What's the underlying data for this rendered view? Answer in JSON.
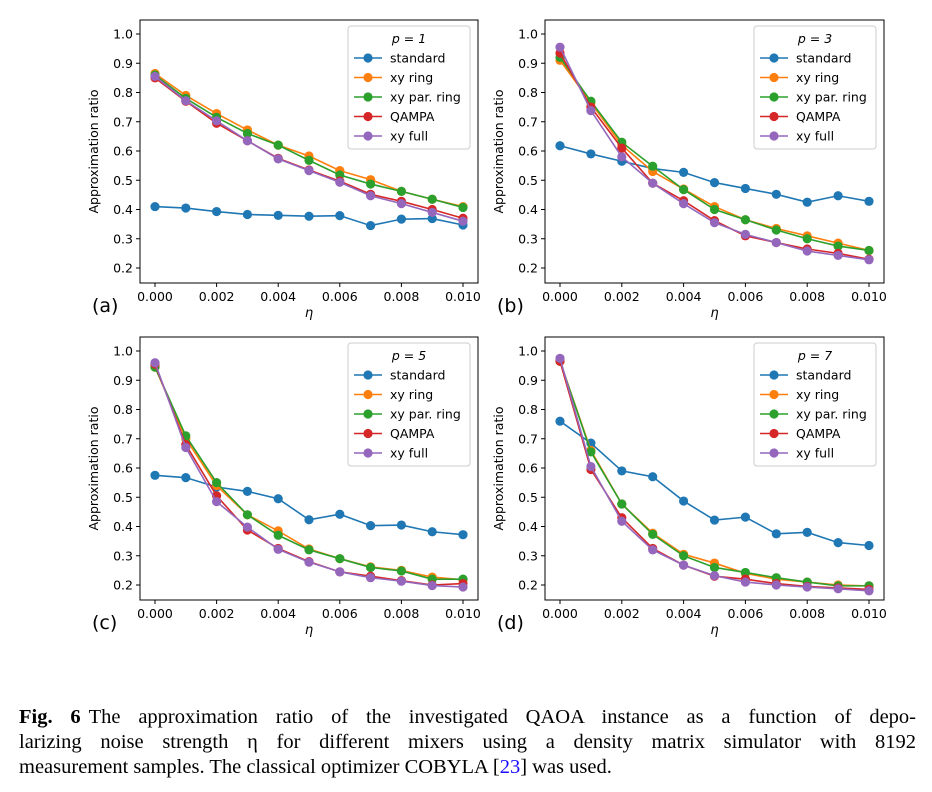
{
  "chart_data": [
    {
      "type": "line",
      "panel_label": "(a)",
      "legend_title": "p = 1",
      "xlabel": "η",
      "ylabel": "Approximation ratio",
      "xlim": [
        0.0,
        0.01
      ],
      "ylim": [
        0.15,
        1.05
      ],
      "xticks": [
        "0.000",
        "0.002",
        "0.004",
        "0.006",
        "0.008",
        "0.010"
      ],
      "yticks": [
        "0.2",
        "0.3",
        "0.4",
        "0.5",
        "0.6",
        "0.7",
        "0.8",
        "0.9",
        "1.0"
      ],
      "legend": "top-right",
      "grid": false,
      "x": [
        0,
        0.001,
        0.002,
        0.003,
        0.004,
        0.005,
        0.006,
        0.007,
        0.008,
        0.009,
        0.01
      ],
      "series": [
        {
          "name": "standard",
          "color": "#1f77b4",
          "values": [
            0.41,
            0.405,
            0.393,
            0.383,
            0.38,
            0.377,
            0.379,
            0.345,
            0.367,
            0.369,
            0.347
          ]
        },
        {
          "name": "xy ring",
          "color": "#ff7f0e",
          "values": [
            0.865,
            0.79,
            0.728,
            0.672,
            0.62,
            0.583,
            0.533,
            0.502,
            0.462,
            0.435,
            0.41
          ]
        },
        {
          "name": "xy par. ring",
          "color": "#2ca02c",
          "values": [
            0.86,
            0.78,
            0.715,
            0.66,
            0.62,
            0.568,
            0.518,
            0.487,
            0.462,
            0.435,
            0.407
          ]
        },
        {
          "name": "QAMPA",
          "color": "#d62728",
          "values": [
            0.85,
            0.77,
            0.695,
            0.635,
            0.575,
            0.535,
            0.497,
            0.452,
            0.428,
            0.4,
            0.37
          ]
        },
        {
          "name": "xy full",
          "color": "#9467bd",
          "values": [
            0.855,
            0.772,
            0.703,
            0.635,
            0.573,
            0.533,
            0.493,
            0.447,
            0.42,
            0.39,
            0.36
          ]
        }
      ]
    },
    {
      "type": "line",
      "panel_label": "(b)",
      "legend_title": "p = 3",
      "xlabel": "η",
      "ylabel": "Approximation ratio",
      "xlim": [
        0.0,
        0.01
      ],
      "ylim": [
        0.15,
        1.05
      ],
      "xticks": [
        "0.000",
        "0.002",
        "0.004",
        "0.006",
        "0.008",
        "0.010"
      ],
      "yticks": [
        "0.2",
        "0.3",
        "0.4",
        "0.5",
        "0.6",
        "0.7",
        "0.8",
        "0.9",
        "1.0"
      ],
      "legend": "top-right",
      "grid": false,
      "x": [
        0,
        0.001,
        0.002,
        0.003,
        0.004,
        0.005,
        0.006,
        0.007,
        0.008,
        0.009,
        0.01
      ],
      "series": [
        {
          "name": "standard",
          "color": "#1f77b4",
          "values": [
            0.618,
            0.59,
            0.565,
            0.54,
            0.527,
            0.492,
            0.472,
            0.452,
            0.425,
            0.447,
            0.428
          ]
        },
        {
          "name": "xy ring",
          "color": "#ff7f0e",
          "values": [
            0.91,
            0.765,
            0.62,
            0.53,
            0.47,
            0.41,
            0.365,
            0.335,
            0.31,
            0.285,
            0.26
          ]
        },
        {
          "name": "xy par. ring",
          "color": "#2ca02c",
          "values": [
            0.92,
            0.77,
            0.63,
            0.548,
            0.468,
            0.4,
            0.365,
            0.33,
            0.3,
            0.275,
            0.26
          ]
        },
        {
          "name": "QAMPA",
          "color": "#d62728",
          "values": [
            0.935,
            0.75,
            0.61,
            0.49,
            0.43,
            0.362,
            0.31,
            0.287,
            0.265,
            0.25,
            0.23
          ]
        },
        {
          "name": "xy full",
          "color": "#9467bd",
          "values": [
            0.955,
            0.738,
            0.58,
            0.49,
            0.42,
            0.355,
            0.315,
            0.287,
            0.258,
            0.243,
            0.228
          ]
        }
      ]
    },
    {
      "type": "line",
      "panel_label": "(c)",
      "legend_title": "p = 5",
      "xlabel": "η",
      "ylabel": "Approximation ratio",
      "xlim": [
        0.0,
        0.01
      ],
      "ylim": [
        0.15,
        1.05
      ],
      "xticks": [
        "0.000",
        "0.002",
        "0.004",
        "0.006",
        "0.008",
        "0.010"
      ],
      "yticks": [
        "0.2",
        "0.3",
        "0.4",
        "0.5",
        "0.6",
        "0.7",
        "0.8",
        "0.9",
        "1.0"
      ],
      "legend": "top-right",
      "grid": false,
      "x": [
        0,
        0.001,
        0.002,
        0.003,
        0.004,
        0.005,
        0.006,
        0.007,
        0.008,
        0.009,
        0.01
      ],
      "series": [
        {
          "name": "standard",
          "color": "#1f77b4",
          "values": [
            0.575,
            0.567,
            0.535,
            0.52,
            0.495,
            0.423,
            0.442,
            0.403,
            0.405,
            0.382,
            0.372
          ]
        },
        {
          "name": "xy ring",
          "color": "#ff7f0e",
          "values": [
            0.945,
            0.7,
            0.54,
            0.44,
            0.385,
            0.323,
            0.29,
            0.262,
            0.25,
            0.227,
            0.218
          ]
        },
        {
          "name": "xy par. ring",
          "color": "#2ca02c",
          "values": [
            0.945,
            0.71,
            0.55,
            0.44,
            0.37,
            0.32,
            0.29,
            0.26,
            0.248,
            0.22,
            0.22
          ]
        },
        {
          "name": "QAMPA",
          "color": "#d62728",
          "values": [
            0.955,
            0.68,
            0.505,
            0.388,
            0.325,
            0.28,
            0.245,
            0.23,
            0.215,
            0.2,
            0.205
          ]
        },
        {
          "name": "xy full",
          "color": "#9467bd",
          "values": [
            0.96,
            0.67,
            0.485,
            0.398,
            0.322,
            0.278,
            0.245,
            0.225,
            0.213,
            0.198,
            0.193
          ]
        }
      ]
    },
    {
      "type": "line",
      "panel_label": "(d)",
      "legend_title": "p = 7",
      "xlabel": "η",
      "ylabel": "Approximation ratio",
      "xlim": [
        0.0,
        0.01
      ],
      "ylim": [
        0.15,
        1.05
      ],
      "xticks": [
        "0.000",
        "0.002",
        "0.004",
        "0.006",
        "0.008",
        "0.010"
      ],
      "yticks": [
        "0.2",
        "0.3",
        "0.4",
        "0.5",
        "0.6",
        "0.7",
        "0.8",
        "0.9",
        "1.0"
      ],
      "legend": "top-right",
      "grid": false,
      "x": [
        0,
        0.001,
        0.002,
        0.003,
        0.004,
        0.005,
        0.006,
        0.007,
        0.008,
        0.009,
        0.01
      ],
      "series": [
        {
          "name": "standard",
          "color": "#1f77b4",
          "values": [
            0.76,
            0.685,
            0.59,
            0.57,
            0.487,
            0.422,
            0.432,
            0.375,
            0.38,
            0.345,
            0.335
          ]
        },
        {
          "name": "xy ring",
          "color": "#ff7f0e",
          "values": [
            0.965,
            0.66,
            0.477,
            0.377,
            0.305,
            0.275,
            0.24,
            0.22,
            0.21,
            0.2,
            0.197
          ]
        },
        {
          "name": "xy par. ring",
          "color": "#2ca02c",
          "values": [
            0.965,
            0.655,
            0.477,
            0.373,
            0.3,
            0.26,
            0.243,
            0.225,
            0.21,
            0.197,
            0.197
          ]
        },
        {
          "name": "QAMPA",
          "color": "#d62728",
          "values": [
            0.965,
            0.595,
            0.43,
            0.325,
            0.268,
            0.23,
            0.22,
            0.205,
            0.195,
            0.19,
            0.185
          ]
        },
        {
          "name": "xy full",
          "color": "#9467bd",
          "values": [
            0.975,
            0.605,
            0.418,
            0.32,
            0.268,
            0.232,
            0.21,
            0.2,
            0.193,
            0.187,
            0.18
          ]
        }
      ]
    }
  ],
  "caption": {
    "label": "Fig. 6",
    "line1": "The approximation ratio of the investigated QAOA instance as a function of depo-",
    "line2": "larizing noise strength η for different mixers using a density matrix simulator with 8192",
    "line3a": "measurement samples. The classical optimizer COBYLA [",
    "citation": "23",
    "line3b": "] was used."
  }
}
